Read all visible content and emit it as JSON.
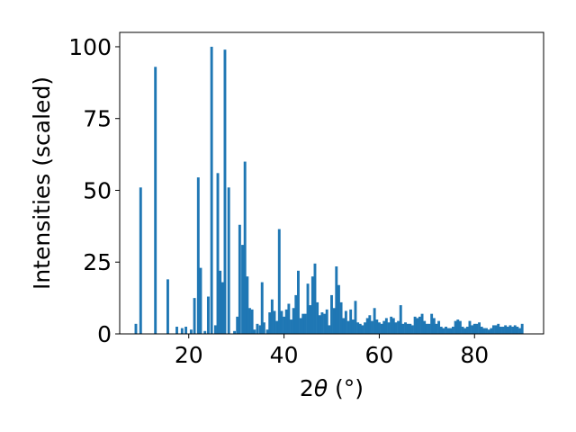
{
  "chart_data": {
    "type": "bar",
    "title": "",
    "xlabel_main": "2",
    "xlabel_symbol": "θ",
    "xlabel_unit": " (°)",
    "ylabel": "Intensities (scaled)",
    "xlim": [
      5.5,
      94.5
    ],
    "ylim": [
      0,
      105
    ],
    "x_ticks": [
      20,
      40,
      60,
      80
    ],
    "y_ticks": [
      0,
      25,
      50,
      75,
      100
    ],
    "bar_color": "#1f77b4",
    "bar_width_units": 0.55,
    "x": [
      8.9,
      9.9,
      13.0,
      15.6,
      17.5,
      18.6,
      19.4,
      20.5,
      21.2,
      22.0,
      22.5,
      23.4,
      24.1,
      24.8,
      25.6,
      26.1,
      26.6,
      27.1,
      27.6,
      28.4,
      29.6,
      30.2,
      30.7,
      31.3,
      31.8,
      32.3,
      32.8,
      33.3,
      33.8,
      34.4,
      35.0,
      35.4,
      35.8,
      36.5,
      37.0,
      37.5,
      38.0,
      38.5,
      39.0,
      39.5,
      40.0,
      40.5,
      41.0,
      41.5,
      42.0,
      42.5,
      43.0,
      43.5,
      44.0,
      44.5,
      45.0,
      45.5,
      46.0,
      46.5,
      47.0,
      47.5,
      48.0,
      48.5,
      49.0,
      49.5,
      50.0,
      50.5,
      51.0,
      51.5,
      52.0,
      52.5,
      53.0,
      53.5,
      54.0,
      54.5,
      55.0,
      55.5,
      56.0,
      56.5,
      57.0,
      57.5,
      58.0,
      58.5,
      59.0,
      59.5,
      60.0,
      60.5,
      61.0,
      61.5,
      62.0,
      62.5,
      63.0,
      63.5,
      64.0,
      64.5,
      65.0,
      65.5,
      66.0,
      66.5,
      67.0,
      67.5,
      68.0,
      68.5,
      69.0,
      69.5,
      70.0,
      70.5,
      71.0,
      71.5,
      72.0,
      72.5,
      73.0,
      73.5,
      74.0,
      74.5,
      75.0,
      75.5,
      76.0,
      76.5,
      77.0,
      77.5,
      78.0,
      78.5,
      79.0,
      79.5,
      80.0,
      80.5,
      81.0,
      81.5,
      82.0,
      82.5,
      83.0,
      83.5,
      84.0,
      84.5,
      85.0,
      85.5,
      86.0,
      86.5,
      87.0,
      87.5,
      88.0,
      88.5,
      89.0,
      89.5,
      90.0
    ],
    "values": [
      3.5,
      51.0,
      93.0,
      19.0,
      2.5,
      2.0,
      2.5,
      1.5,
      12.5,
      54.5,
      23.0,
      1.0,
      13.0,
      100.0,
      3.0,
      56.0,
      22.0,
      18.0,
      99.0,
      51.0,
      1.0,
      6.0,
      38.0,
      31.0,
      60.0,
      20.0,
      9.0,
      8.5,
      1.5,
      3.5,
      3.0,
      18.0,
      4.0,
      1.5,
      7.5,
      12.0,
      8.0,
      4.5,
      36.5,
      8.0,
      6.0,
      8.5,
      10.5,
      5.0,
      9.0,
      13.5,
      22.0,
      5.5,
      7.0,
      7.0,
      17.5,
      10.0,
      20.0,
      24.5,
      11.0,
      6.5,
      7.5,
      7.0,
      8.5,
      3.0,
      13.5,
      9.0,
      23.5,
      17.0,
      11.0,
      5.5,
      8.0,
      4.5,
      8.5,
      5.0,
      11.5,
      4.0,
      3.5,
      3.0,
      4.0,
      5.5,
      6.5,
      4.5,
      9.0,
      5.0,
      4.0,
      3.5,
      4.5,
      5.5,
      4.0,
      6.0,
      5.5,
      4.0,
      4.5,
      10.0,
      3.5,
      4.0,
      3.5,
      3.5,
      3.0,
      6.0,
      5.5,
      6.0,
      7.0,
      4.5,
      3.5,
      3.5,
      7.0,
      5.5,
      3.5,
      4.5,
      2.5,
      2.0,
      2.5,
      2.0,
      2.0,
      2.5,
      4.5,
      5.0,
      4.5,
      2.5,
      2.0,
      2.5,
      4.5,
      3.0,
      3.5,
      3.5,
      4.0,
      2.5,
      2.0,
      2.0,
      1.5,
      2.0,
      3.0,
      3.0,
      3.5,
      2.5,
      2.5,
      3.0,
      2.5,
      3.0,
      2.5,
      3.0,
      2.5,
      2.0,
      3.5
    ]
  }
}
